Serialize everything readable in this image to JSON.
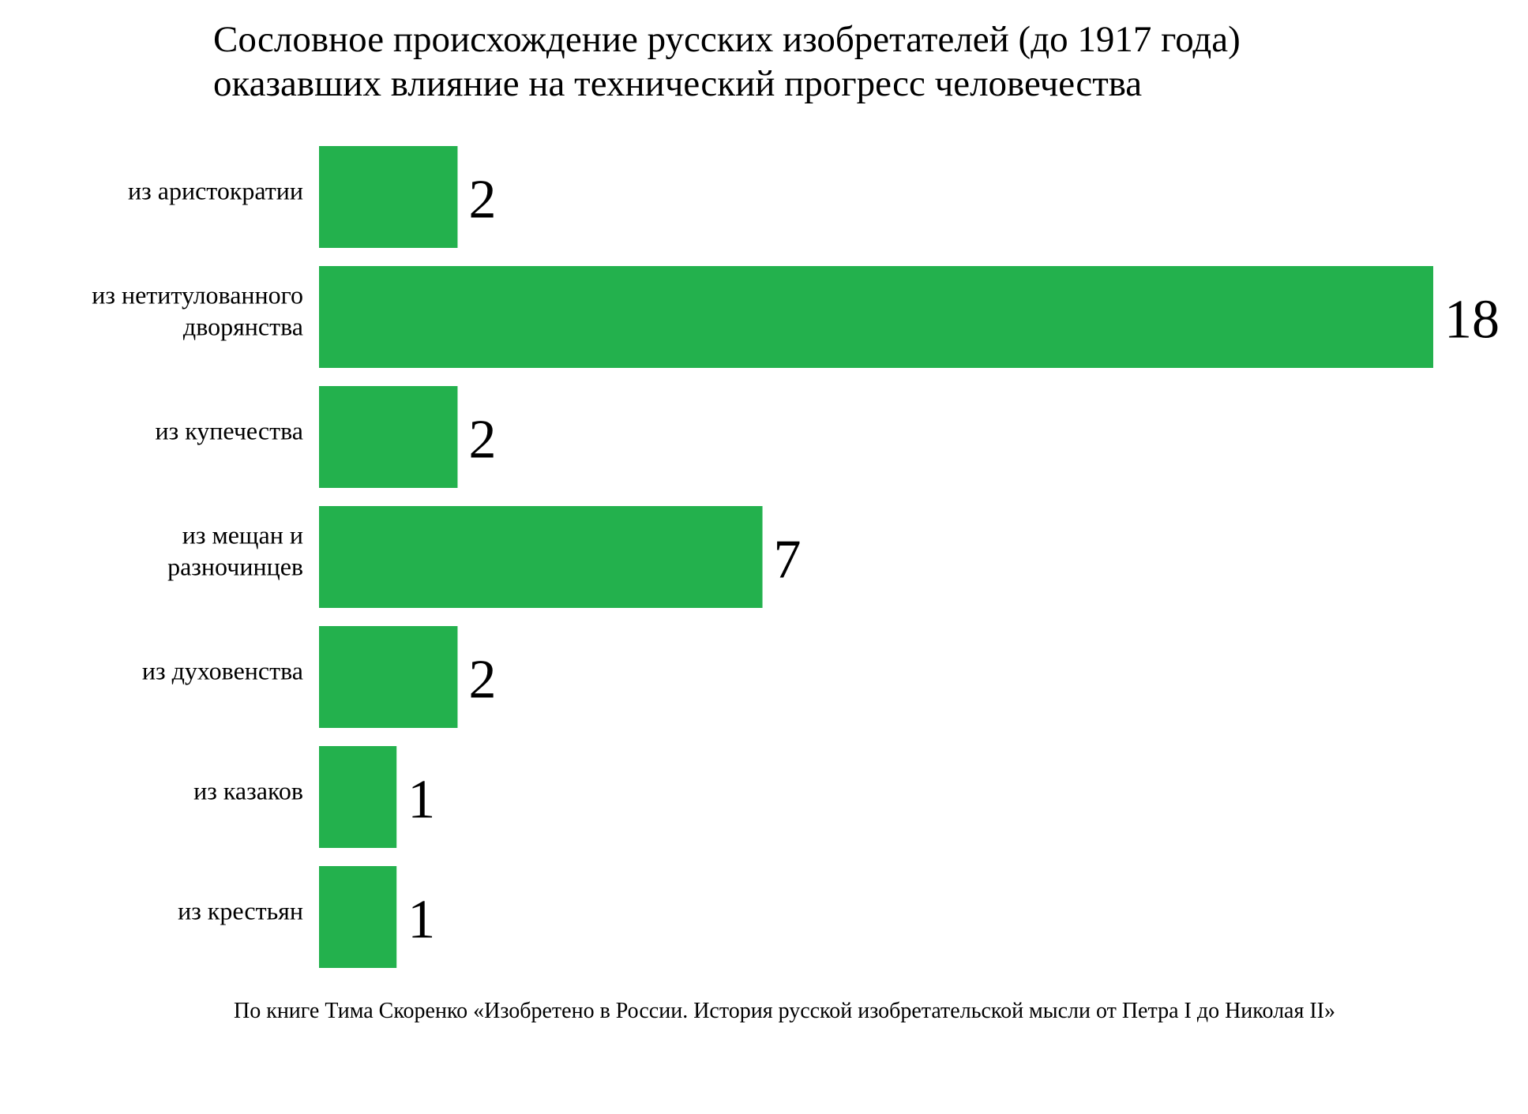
{
  "chart_data": {
    "type": "bar",
    "orientation": "horizontal",
    "title": [
      "Сословное происхождение русских изобретателей (до 1917 года)",
      "оказавших влияние на технический прогресс человечества"
    ],
    "categories": [
      [
        "из аристократии"
      ],
      [
        "из нетитулованного",
        "дворянства"
      ],
      [
        "из купечества"
      ],
      [
        "из мещан и",
        "разночинцев"
      ],
      [
        "из духовенства"
      ],
      [
        "из казаков"
      ],
      [
        "из крестьян"
      ]
    ],
    "values": [
      2,
      18,
      2,
      7,
      2,
      1,
      1
    ],
    "xlabel": "",
    "ylabel": "",
    "grid": false,
    "bar_color": "#23b14d",
    "footnote": "По книге Тима Скоренко  «Изобретено в России. История русской изобретательской мысли от Петра I до Николая II»"
  }
}
